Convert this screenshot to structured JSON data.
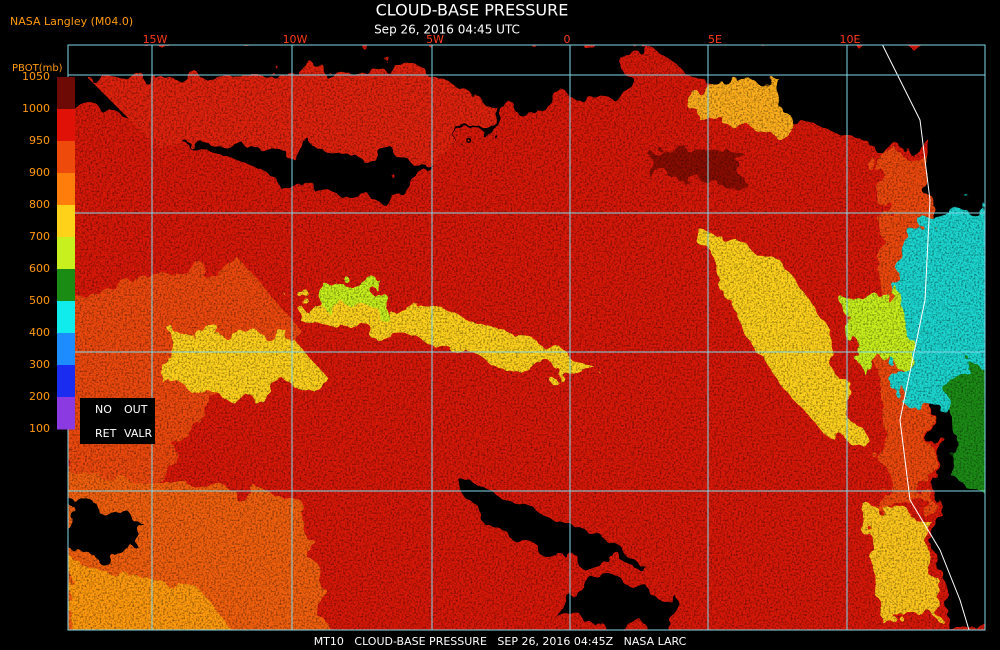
{
  "header": {
    "agency": "NASA Langley (M04.0)",
    "title": "CLOUD-BASE PRESSURE",
    "subtitle": "Sep 26, 2016 04:45 UTC"
  },
  "legend": {
    "title": "PBOT(mb)",
    "labels": [
      1050,
      1000,
      950,
      900,
      800,
      700,
      600,
      500,
      400,
      300,
      200,
      100
    ],
    "colors": [
      "#6e0a06",
      "#e01208",
      "#ee4a0c",
      "#ff7d0a",
      "#ffd21a",
      "#c8f01e",
      "#1a8c14",
      "#10ecec",
      "#1c8cff",
      "#1a2cf0",
      "#8a3ae0"
    ],
    "flags": [
      "NO",
      "OUT",
      "RET",
      "VALR"
    ]
  },
  "map": {
    "longitude_labels": [
      "15W",
      "10W",
      "5W",
      "0",
      "5E",
      "10E"
    ]
  },
  "footer": "MT10   CLOUD-BASE PRESSURE   SEP 26, 2016 04:45Z   NASA LARC"
}
